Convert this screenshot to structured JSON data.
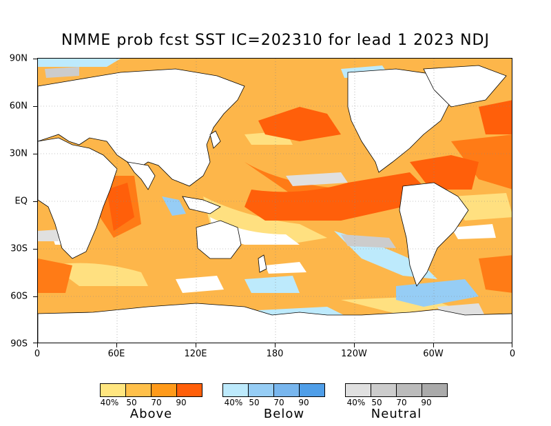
{
  "title": "NMME prob fcst SST IC=202310 for lead 1 2023 NDJ",
  "map": {
    "y_axis_labels": [
      "90N",
      "60N",
      "30N",
      "EQ",
      "30S",
      "60S",
      "90S"
    ],
    "x_axis_labels": [
      "0",
      "60E",
      "120E",
      "180",
      "120W",
      "60W",
      "0"
    ],
    "colors": {
      "above": [
        "#ffe680",
        "#ffc04a",
        "#ff9a1a",
        "#ff5f0a"
      ],
      "below": [
        "#bdeafc",
        "#96cdf5",
        "#78b6ee",
        "#4f9ee8"
      ],
      "neutral": [
        "#e0e0e0",
        "#cccccc",
        "#bbbbbb",
        "#aaaaaa"
      ],
      "land": "#ffffff",
      "white_ocean": "#ffffff"
    }
  },
  "legend": {
    "above": {
      "tick_labels": [
        "40%",
        "50",
        "70",
        "90"
      ],
      "label": "Above"
    },
    "below": {
      "tick_labels": [
        "40%",
        "50",
        "70",
        "90"
      ],
      "label": "Below"
    },
    "neutral": {
      "tick_labels": [
        "40%",
        "50",
        "70",
        "90"
      ],
      "label": "Neutral"
    }
  }
}
